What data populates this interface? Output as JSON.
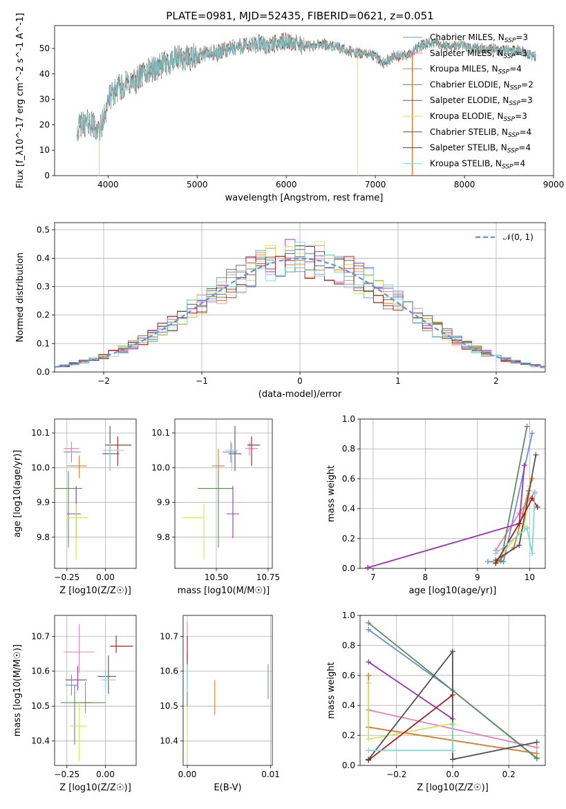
{
  "title": "PLATE=0981, MJD=52435, FIBERID=0621, z=0.051",
  "series_styles": [
    {
      "name": "Chabrier MILES",
      "nssp": "3",
      "color": "#6b8fd6"
    },
    {
      "name": "Salpeter MILES",
      "nssp": "3",
      "color": "#e87fb4"
    },
    {
      "name": "Kroupa MILES",
      "nssp": "4",
      "color": "#dd7a2c"
    },
    {
      "name": "Chabrier ELODIE",
      "nssp": "2",
      "color": "#5a8f5a"
    },
    {
      "name": "Salpeter ELODIE",
      "nssp": "3",
      "color": "#9a2fb0"
    },
    {
      "name": "Kroupa ELODIE",
      "nssp": "3",
      "color": "#cfe65a"
    },
    {
      "name": "Chabrier STELIB",
      "nssp": "4",
      "color": "#505050"
    },
    {
      "name": "Salpeter STELIB",
      "nssp": "4",
      "color": "#a51d1d"
    },
    {
      "name": "Kroupa STELIB",
      "nssp": "4",
      "color": "#7fd8dc"
    }
  ],
  "chart_data": [
    {
      "id": "spectrum",
      "type": "line",
      "xlabel": "wavelength [Angstrom, rest frame]",
      "ylabel": "Flux [f_λ10^-17 erg cm^-2 s^-1 A^-1]",
      "xlim": [
        3400,
        9000
      ],
      "ylim": [
        0,
        59
      ],
      "xticks": [
        4000,
        5000,
        6000,
        7000,
        8000,
        9000
      ],
      "yticks": [
        0,
        10,
        20,
        30,
        40,
        50
      ],
      "legend": "top-right",
      "envelope": {
        "x": [
          3650,
          3700,
          3800,
          3900,
          3950,
          4000,
          4100,
          4200,
          4300,
          4400,
          4500,
          4600,
          4700,
          4800,
          4900,
          5000,
          5100,
          5200,
          5300,
          5400,
          5500,
          5600,
          5700,
          5800,
          5900,
          6000,
          6100,
          6200,
          6300,
          6400,
          6500,
          6600,
          6700,
          6800,
          6900,
          7000,
          7100,
          7200,
          7300,
          7400,
          7500,
          7600,
          7700,
          7800,
          7900,
          8000,
          8100,
          8200,
          8300,
          8400,
          8500,
          8600,
          8700,
          8800
        ],
        "y": [
          18,
          20,
          21,
          17,
          22,
          30,
          34,
          36,
          37,
          40,
          42,
          43,
          45,
          46,
          46,
          47,
          48,
          48,
          49,
          50,
          51,
          51,
          52,
          51,
          52,
          53,
          52,
          51,
          51,
          52,
          51,
          50,
          49,
          48,
          48,
          47,
          44,
          47,
          47,
          48,
          51,
          52,
          52,
          51,
          51,
          51,
          50,
          50,
          50,
          49,
          49,
          49,
          48,
          47
        ]
      },
      "dips": [
        {
          "series": "Kroupa ELODIE",
          "x": 3900
        },
        {
          "series": "Kroupa ELODIE",
          "x": 6800
        },
        {
          "series": "Salpeter STELIB",
          "x": 7415
        },
        {
          "series": "Kroupa MILES",
          "x": 7415
        }
      ]
    },
    {
      "id": "residuals",
      "type": "area",
      "xlabel": "(data-model)/error",
      "ylabel": "Normed distribution",
      "xlim": [
        -2.5,
        2.5
      ],
      "ylim": [
        0,
        0.525
      ],
      "xticks": [
        -2,
        -1,
        0,
        1,
        2
      ],
      "yticks": [
        0.0,
        0.1,
        0.2,
        0.3,
        0.4,
        0.5
      ],
      "grid": true,
      "legend": "top-right",
      "reference": {
        "name": "𝒩(0, 1)",
        "mean": 0,
        "sigma": 1,
        "color": "#6b8fd6"
      },
      "bin_width": 0.1,
      "note": "step histograms for each of the 9 fits, normalized"
    },
    {
      "id": "age_vs_Z",
      "type": "scatter",
      "xlabel": "Z [log10(Z/Z☉)]",
      "ylabel": "age [log10(age/yr)]",
      "xlim": [
        -0.33,
        0.2
      ],
      "ylim": [
        9.71,
        10.14
      ],
      "xticks": [
        -0.25,
        0.0
      ],
      "yticks": [
        9.8,
        9.9,
        10.0,
        10.1
      ],
      "grid": true,
      "points": [
        {
          "series": "Chabrier MILES",
          "x": -0.22,
          "xerr": [
            0.05,
            0.06
          ],
          "y": 10.045,
          "yerr": [
            0.03,
            0.03
          ]
        },
        {
          "series": "Salpeter MILES",
          "x": -0.22,
          "xerr": [
            0.05,
            0.05
          ],
          "y": 10.055,
          "yerr": [
            0.02,
            0.02
          ]
        },
        {
          "series": "Kroupa MILES",
          "x": -0.17,
          "xerr": [
            0.08,
            0.05
          ],
          "y": 10.005,
          "yerr": [
            0.035,
            0.03
          ]
        },
        {
          "series": "Chabrier ELODIE",
          "x": -0.24,
          "xerr": [
            0.09,
            0.09
          ],
          "y": 9.94,
          "yerr": [
            0.17,
            0.05
          ]
        },
        {
          "series": "Salpeter ELODIE",
          "x": -0.19,
          "xerr": [
            0.06,
            0.03
          ],
          "y": 9.867,
          "yerr": [
            0.07,
            0.08
          ]
        },
        {
          "series": "Kroupa ELODIE",
          "x": -0.19,
          "xerr": [
            0.06,
            0.08
          ],
          "y": 9.856,
          "yerr": [
            0.12,
            0.04
          ]
        },
        {
          "series": "Chabrier STELIB",
          "x": 0.03,
          "xerr": [
            0.05,
            0.06
          ],
          "y": 10.04,
          "yerr": [
            0.05,
            0.08
          ]
        },
        {
          "series": "Salpeter STELIB",
          "x": 0.08,
          "xerr": [
            0.08,
            0.09
          ],
          "y": 10.065,
          "yerr": [
            0.06,
            0.025
          ]
        },
        {
          "series": "Kroupa STELIB",
          "x": 0.03,
          "xerr": [
            0.04,
            0.09
          ],
          "y": 10.05,
          "yerr": [
            0.06,
            0.02
          ]
        }
      ]
    },
    {
      "id": "age_vs_mass",
      "type": "scatter",
      "xlabel": "mass [log10(M/M☉)]",
      "ylabel": "",
      "xlim": [
        10.3,
        10.77
      ],
      "ylim": [
        9.71,
        10.14
      ],
      "xticks": [
        10.5,
        10.75
      ],
      "yticks": [
        9.8,
        9.9,
        10.0,
        10.1
      ],
      "grid": true,
      "points": [
        {
          "series": "Chabrier MILES",
          "x": 10.57,
          "xerr": [
            0.04,
            0.03
          ],
          "y": 10.045,
          "yerr": [
            0.03,
            0.03
          ]
        },
        {
          "series": "Salpeter MILES",
          "x": 10.66,
          "xerr": [
            0.02,
            0.04
          ],
          "y": 10.055,
          "yerr": [
            0.02,
            0.02
          ]
        },
        {
          "series": "Kroupa MILES",
          "x": 10.51,
          "xerr": [
            0.03,
            0.03
          ],
          "y": 10.005,
          "yerr": [
            0.05,
            0.05
          ]
        },
        {
          "series": "Chabrier ELODIE",
          "x": 10.51,
          "xerr": [
            0.1,
            0.07
          ],
          "y": 9.94,
          "yerr": [
            0.17,
            0.05
          ]
        },
        {
          "series": "Salpeter ELODIE",
          "x": 10.58,
          "xerr": [
            0.03,
            0.03
          ],
          "y": 9.867,
          "yerr": [
            0.07,
            0.08
          ]
        },
        {
          "series": "Kroupa ELODIE",
          "x": 10.44,
          "xerr": [
            0.1,
            0.0
          ],
          "y": 9.856,
          "yerr": [
            0.12,
            0.04
          ]
        },
        {
          "series": "Chabrier STELIB",
          "x": 10.59,
          "xerr": [
            0.03,
            0.03
          ],
          "y": 10.04,
          "yerr": [
            0.05,
            0.08
          ]
        },
        {
          "series": "Salpeter STELIB",
          "x": 10.67,
          "xerr": [
            0.02,
            0.04
          ],
          "y": 10.065,
          "yerr": [
            0.06,
            0.025
          ]
        },
        {
          "series": "Kroupa STELIB",
          "x": 10.575,
          "xerr": [
            0.03,
            0.03
          ],
          "y": 10.05,
          "yerr": [
            0.06,
            0.02
          ]
        }
      ]
    },
    {
      "id": "weight_vs_age",
      "type": "line",
      "xlabel": "age [log10(age/yr)]",
      "ylabel": "mass weight",
      "xlim": [
        6.75,
        10.3
      ],
      "ylim": [
        0,
        1
      ],
      "xticks": [
        7,
        8,
        9,
        10
      ],
      "yticks": [
        0.0,
        0.2,
        0.4,
        0.6,
        0.8,
        1.0
      ],
      "grid": true,
      "series": [
        {
          "name": "Chabrier MILES",
          "x": [
            9.2,
            9.5,
            10.05
          ],
          "y": [
            0.045,
            0.045,
            0.905
          ]
        },
        {
          "name": "Salpeter MILES",
          "x": [
            9.35,
            9.8,
            10.1
          ],
          "y": [
            0.12,
            0.37,
            0.51
          ]
        },
        {
          "name": "Kroupa MILES",
          "x": [
            9.35,
            9.7,
            9.98,
            10.05
          ],
          "y": [
            0.035,
            0.14,
            0.52,
            0.6
          ]
        },
        {
          "name": "Chabrier ELODIE",
          "x": [
            9.45,
            9.95
          ],
          "y": [
            0.05,
            0.95
          ]
        },
        {
          "name": "Salpeter ELODIE",
          "x": [
            6.9,
            9.8,
            9.9
          ],
          "y": [
            0.005,
            0.3,
            0.69
          ]
        },
        {
          "name": "Kroupa ELODIE",
          "x": [
            9.35,
            9.9,
            10.0
          ],
          "y": [
            0.045,
            0.28,
            0.55
          ]
        },
        {
          "name": "Chabrier STELIB",
          "x": [
            9.35,
            9.8,
            10.12
          ],
          "y": [
            0.055,
            0.155,
            0.76
          ]
        },
        {
          "name": "Salpeter STELIB",
          "x": [
            9.35,
            9.8,
            10.05,
            10.15
          ],
          "y": [
            0.035,
            0.3,
            0.47,
            0.41
          ]
        },
        {
          "name": "Kroupa STELIB",
          "x": [
            9.35,
            9.95,
            10.05,
            10.1
          ],
          "y": [
            0.1,
            0.27,
            0.1,
            0.5
          ]
        }
      ]
    },
    {
      "id": "mass_vs_Z",
      "type": "scatter",
      "xlabel": "Z [log10(Z/Z☉)]",
      "ylabel": "mass [log10(M/M☉)]",
      "xlim": [
        -0.33,
        0.2
      ],
      "ylim": [
        10.33,
        10.76
      ],
      "xticks": [
        -0.25,
        0.0
      ],
      "yticks": [
        10.4,
        10.5,
        10.6,
        10.7
      ],
      "grid": true,
      "points": [
        {
          "series": "Chabrier MILES",
          "x": -0.22,
          "xerr": [
            0.04,
            0.04
          ],
          "y": 10.56,
          "yerr": [
            0.03,
            0.03
          ]
        },
        {
          "series": "Salpeter MILES",
          "x": -0.17,
          "xerr": [
            0.1,
            0.1
          ],
          "y": 10.655,
          "yerr": [
            0.06,
            0.08
          ]
        },
        {
          "series": "Kroupa MILES",
          "x": -0.13,
          "xerr": [
            0.08,
            0.04
          ],
          "y": 10.51,
          "yerr": [
            0.03,
            0.06
          ]
        },
        {
          "series": "Chabrier ELODIE",
          "x": -0.2,
          "xerr": [
            0.09,
            0.2
          ],
          "y": 10.51,
          "yerr": [
            0.12,
            0.05
          ]
        },
        {
          "series": "Salpeter ELODIE",
          "x": -0.18,
          "xerr": [
            0.08,
            0.06
          ],
          "y": 10.575,
          "yerr": [
            0.03,
            0.04
          ]
        },
        {
          "series": "Kroupa ELODIE",
          "x": -0.17,
          "xerr": [
            0.06,
            0.05
          ],
          "y": 10.443,
          "yerr": [
            0.1,
            0.07
          ]
        },
        {
          "series": "Chabrier STELIB",
          "x": 0.02,
          "xerr": [
            0.07,
            0.05
          ],
          "y": 10.585,
          "yerr": [
            0.05,
            0.06
          ]
        },
        {
          "series": "Salpeter STELIB",
          "x": 0.07,
          "xerr": [
            0.04,
            0.11
          ],
          "y": 10.672,
          "yerr": [
            0.02,
            0.03
          ]
        },
        {
          "series": "Kroupa STELIB",
          "x": 0.0,
          "xerr": [
            0.03,
            0.07
          ],
          "y": 10.575,
          "yerr": [
            0.03,
            0.03
          ]
        }
      ]
    },
    {
      "id": "mass_vs_EBV",
      "type": "scatter",
      "xlabel": "E(B-V)",
      "ylabel": "",
      "xlim": [
        -0.0005,
        0.0102
      ],
      "ylim": [
        10.33,
        10.76
      ],
      "xticks": [
        0.0,
        0.01
      ],
      "yticks": [
        10.4,
        10.5,
        10.6,
        10.7
      ],
      "grid": true,
      "points": [
        {
          "series": "Chabrier MILES",
          "x": 0.0097,
          "y": 10.57,
          "yerr": [
            0.05,
            0.05
          ]
        },
        {
          "series": "Salpeter MILES",
          "x": 0.0,
          "y": 10.66,
          "yerr": [
            0.05,
            0.08
          ]
        },
        {
          "series": "Kroupa MILES",
          "x": 0.0033,
          "y": 10.515,
          "yerr": [
            0.04,
            0.06
          ]
        },
        {
          "series": "Chabrier ELODIE",
          "x": 0.0,
          "y": 10.56,
          "yerr": [
            0.1,
            0.04
          ]
        },
        {
          "series": "Salpeter ELODIE",
          "x": 0.0,
          "y": 10.58,
          "yerr": [
            0.04,
            0.05
          ]
        },
        {
          "series": "Kroupa ELODIE",
          "x": 0.0,
          "y": 10.44,
          "yerr": [
            0.08,
            0.06
          ]
        },
        {
          "series": "Chabrier STELIB",
          "x": 0.0,
          "y": 10.6,
          "yerr": [
            0.05,
            0.05
          ]
        },
        {
          "series": "Salpeter STELIB",
          "x": 0.0,
          "y": 10.67,
          "yerr": [
            0.04,
            0.03
          ]
        },
        {
          "series": "Kroupa STELIB",
          "x": 0.0,
          "y": 10.58,
          "yerr": [
            0.04,
            0.04
          ]
        }
      ]
    },
    {
      "id": "weight_vs_Z",
      "type": "line",
      "xlabel": "Z [log10(Z/Z☉)]",
      "ylabel": "mass weight",
      "xlim": [
        -0.33,
        0.33
      ],
      "ylim": [
        0,
        1
      ],
      "xticks": [
        -0.2,
        0.0,
        0.2
      ],
      "yticks": [
        0.0,
        0.2,
        0.4,
        0.6,
        0.8,
        1.0
      ],
      "grid": true,
      "series": [
        {
          "name": "Chabrier MILES",
          "x": [
            -0.3,
            0.0,
            0.3
          ],
          "y": [
            0.905,
            0.5,
            0.045
          ]
        },
        {
          "name": "Salpeter MILES",
          "x": [
            -0.3,
            0.3
          ],
          "y": [
            0.37,
            0.12
          ]
        },
        {
          "name": "Kroupa MILES",
          "x": [
            -0.3,
            -0.3,
            0.3
          ],
          "y": [
            0.6,
            0.255,
            0.08
          ]
        },
        {
          "name": "Chabrier ELODIE",
          "x": [
            -0.3,
            0.3
          ],
          "y": [
            0.95,
            0.05
          ]
        },
        {
          "name": "Salpeter ELODIE",
          "x": [
            -0.3,
            0.0
          ],
          "y": [
            0.69,
            0.31
          ]
        },
        {
          "name": "Kroupa ELODIE",
          "x": [
            -0.3,
            -0.3,
            0.0
          ],
          "y": [
            0.55,
            0.175,
            0.28
          ]
        },
        {
          "name": "Chabrier STELIB",
          "x": [
            -0.3,
            0.0,
            0.0,
            0.3
          ],
          "y": [
            0.04,
            0.76,
            0.04,
            0.155
          ]
        },
        {
          "name": "Salpeter STELIB",
          "x": [
            -0.3,
            0.0
          ],
          "y": [
            0.035,
            0.47
          ]
        },
        {
          "name": "Kroupa STELIB",
          "x": [
            -0.3,
            0.0,
            0.0
          ],
          "y": [
            0.1,
            0.1,
            0.27
          ]
        }
      ]
    }
  ]
}
